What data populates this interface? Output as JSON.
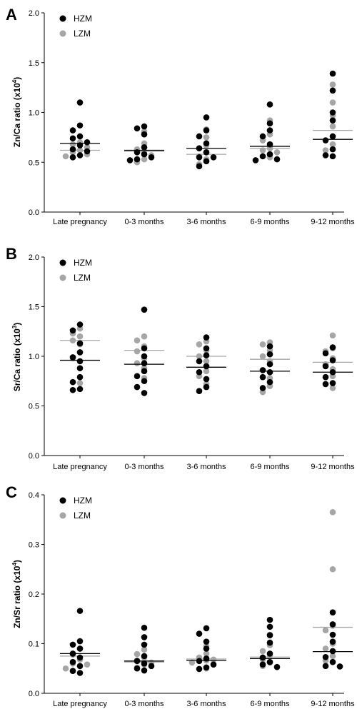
{
  "colors": {
    "HZM": "#000000",
    "LZM": "#a6a6a6",
    "axis": "#000000"
  },
  "chart_data": [
    {
      "type": "scatter",
      "panel": "A",
      "ylabel": {
        "main": "Zn/Ca ratio (x10",
        "sup": "4",
        "end": ")"
      },
      "ylim": [
        0,
        2.0
      ],
      "yticks": [
        "0.0",
        "0.5",
        "1.0",
        "1.5",
        "2.0"
      ],
      "categories": [
        "Late pregnancy",
        "0-3 months",
        "3-6 months",
        "6-9 months",
        "9-12 months"
      ],
      "legend": {
        "position": "top-left",
        "entries": [
          "HZM",
          "LZM"
        ]
      },
      "series": [
        {
          "name": "HZM",
          "medians": [
            0.69,
            0.62,
            0.64,
            0.66,
            0.73
          ],
          "values": [
            [
              1.1,
              0.87,
              0.82,
              0.76,
              0.74,
              0.7,
              0.67,
              0.63,
              0.61,
              0.57,
              0.55
            ],
            [
              0.86,
              0.84,
              0.78,
              0.65,
              0.6,
              0.58,
              0.55,
              0.53,
              0.52
            ],
            [
              0.95,
              0.82,
              0.76,
              0.69,
              0.64,
              0.6,
              0.55,
              0.55,
              0.51,
              0.46
            ],
            [
              1.08,
              0.89,
              0.82,
              0.76,
              0.68,
              0.58,
              0.56,
              0.53,
              0.52
            ],
            [
              1.39,
              1.22,
              1.0,
              0.92,
              0.76,
              0.72,
              0.63,
              0.57,
              0.56
            ]
          ]
        },
        {
          "name": "LZM",
          "medians": [
            0.62,
            0.61,
            0.58,
            0.64,
            0.82
          ],
          "values": [
            [
              0.7,
              0.68,
              0.65,
              0.62,
              0.6,
              0.58,
              0.56
            ],
            [
              0.81,
              0.69,
              0.63,
              0.61,
              0.57,
              0.53,
              0.5
            ],
            [
              0.83,
              0.75,
              0.67,
              0.6,
              0.56,
              0.53,
              0.48
            ],
            [
              0.92,
              0.78,
              0.72,
              0.64,
              0.62,
              0.6,
              0.55
            ],
            [
              1.28,
              1.1,
              0.97,
              0.86,
              0.76,
              0.68,
              0.62
            ]
          ]
        }
      ]
    },
    {
      "type": "scatter",
      "panel": "B",
      "ylabel": {
        "main": "Sr/Ca ratio (x10",
        "sup": "3",
        "end": ")"
      },
      "ylim": [
        0,
        2.0
      ],
      "yticks": [
        "0.0",
        "0.5",
        "1.0",
        "1.5",
        "2.0"
      ],
      "categories": [
        "Late pregnancy",
        "0-3 months",
        "3-6 months",
        "6-9 months",
        "9-12 months"
      ],
      "legend": {
        "position": "top-left",
        "entries": [
          "HZM",
          "LZM"
        ]
      },
      "series": [
        {
          "name": "HZM",
          "medians": [
            0.96,
            0.92,
            0.89,
            0.85,
            0.84
          ],
          "values": [
            [
              1.32,
              1.26,
              1.13,
              1.04,
              0.99,
              0.95,
              0.88,
              0.79,
              0.74,
              0.67,
              0.66
            ],
            [
              1.47,
              1.08,
              1.0,
              0.93,
              0.85,
              0.8,
              0.75,
              0.69,
              0.63
            ],
            [
              1.19,
              1.08,
              1.01,
              0.95,
              0.9,
              0.84,
              0.77,
              0.69,
              0.65
            ],
            [
              1.1,
              1.02,
              0.92,
              0.86,
              0.84,
              0.79,
              0.74,
              0.68
            ],
            [
              1.09,
              1.03,
              0.96,
              0.9,
              0.84,
              0.79,
              0.73,
              0.72
            ]
          ]
        },
        {
          "name": "LZM",
          "medians": [
            1.16,
            1.06,
            1.0,
            0.97,
            0.94
          ],
          "values": [
            [
              1.28,
              1.23,
              1.2,
              1.16,
              1.12,
              1.04,
              0.98,
              0.73
            ],
            [
              1.2,
              1.16,
              1.1,
              1.05,
              0.98,
              0.93,
              0.88,
              0.78
            ],
            [
              1.15,
              1.12,
              1.06,
              1.0,
              0.95,
              0.85,
              0.8,
              0.72
            ],
            [
              1.14,
              1.12,
              1.06,
              1.0,
              0.95,
              0.78,
              0.7,
              0.64
            ],
            [
              1.21,
              1.08,
              1.05,
              0.98,
              0.92,
              0.87,
              0.8,
              0.68
            ]
          ]
        }
      ]
    },
    {
      "type": "scatter",
      "panel": "C",
      "ylabel": {
        "main": "Zn/Sr ratio (x10",
        "sup": "4",
        "end": ")"
      },
      "ylim": [
        0,
        0.4
      ],
      "yticks": [
        "0.0",
        "0.1",
        "0.2",
        "0.3",
        "0.4"
      ],
      "categories": [
        "Late pregnancy",
        "0-3 months",
        "3-6 months",
        "6-9 months",
        "9-12 months"
      ],
      "legend": {
        "position": "top-left",
        "entries": [
          "HZM",
          "LZM"
        ]
      },
      "series": [
        {
          "name": "HZM",
          "medians": [
            0.08,
            0.065,
            0.066,
            0.07,
            0.084
          ],
          "values": [
            [
              0.166,
              0.105,
              0.098,
              0.09,
              0.08,
              0.072,
              0.063,
              0.055,
              0.045,
              0.041
            ],
            [
              0.132,
              0.113,
              0.098,
              0.075,
              0.065,
              0.06,
              0.055,
              0.05,
              0.046
            ],
            [
              0.131,
              0.12,
              0.104,
              0.09,
              0.07,
              0.065,
              0.058,
              0.052,
              0.049
            ],
            [
              0.148,
              0.134,
              0.117,
              0.102,
              0.08,
              0.072,
              0.063,
              0.058,
              0.053
            ],
            [
              0.163,
              0.139,
              0.118,
              0.104,
              0.085,
              0.073,
              0.063,
              0.055,
              0.054
            ]
          ]
        },
        {
          "name": "LZM",
          "medians": [
            0.075,
            0.063,
            0.069,
            0.073,
            0.133
          ],
          "values": [
            [
              0.09,
              0.078,
              0.068,
              0.06,
              0.058,
              0.055,
              0.05,
              0.045
            ],
            [
              0.088,
              0.079,
              0.072,
              0.066,
              0.062,
              0.058,
              0.052
            ],
            [
              0.095,
              0.08,
              0.072,
              0.068,
              0.066,
              0.062,
              0.05
            ],
            [
              0.118,
              0.097,
              0.085,
              0.076,
              0.068,
              0.062,
              0.055
            ],
            [
              0.365,
              0.25,
              0.136,
              0.127,
              0.1,
              0.09,
              0.075,
              0.066
            ]
          ]
        }
      ]
    }
  ]
}
